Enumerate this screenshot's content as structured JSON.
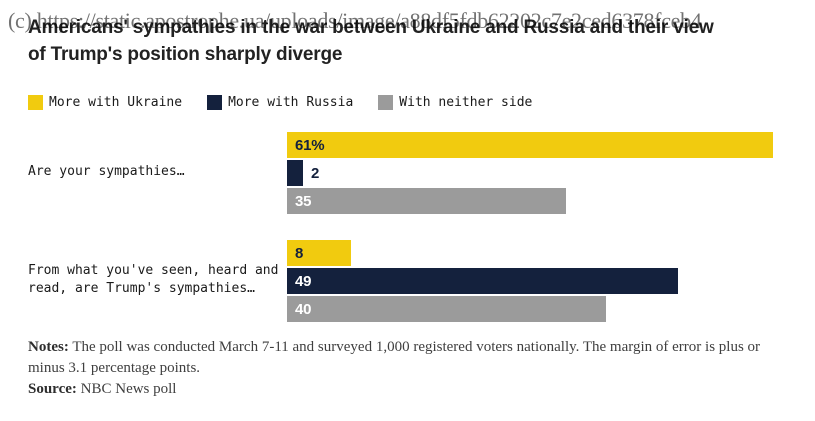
{
  "watermark": "(c) https://static.apostrophe.ua/uploads/image/a88df5fdb62202c7e2ced6378fceb4",
  "title": {
    "line1": "Americans' sympathies in the war between Ukraine and Russia and their view",
    "line2": "of Trump's position sharply diverge"
  },
  "legend": [
    {
      "label": "More with Ukraine",
      "color": "#F1CB0F"
    },
    {
      "label": "More with Russia",
      "color": "#14213D"
    },
    {
      "label": "With neither side",
      "color": "#9B9B9B"
    }
  ],
  "chart_data": {
    "type": "bar",
    "orientation": "horizontal",
    "title": "Americans' sympathies in the war between Ukraine and Russia and their view of Trump's position sharply diverge",
    "unit": "percent",
    "xlim": [
      0,
      63
    ],
    "grid": false,
    "legend_position": "top",
    "categories": [
      "Are your sympathies…",
      "From what you've seen, heard and read, are Trump's sympathies…"
    ],
    "series": [
      {
        "name": "More with Ukraine",
        "color": "#F1CB0F",
        "label_color": "#14213D",
        "values": [
          61,
          8
        ],
        "value_labels": [
          "61%",
          "8"
        ]
      },
      {
        "name": "More with Russia",
        "color": "#14213D",
        "label_color": "#FFFFFF",
        "values": [
          2,
          49
        ],
        "value_labels": [
          "2",
          "49"
        ]
      },
      {
        "name": "With neither side",
        "color": "#9B9B9B",
        "label_color": "#FFFFFF",
        "values": [
          35,
          40
        ],
        "value_labels": [
          "35",
          "40"
        ]
      }
    ]
  },
  "notes": {
    "label": "Notes:",
    "text": "The poll was conducted March 7-11 and surveyed 1,000 registered voters nationally. The margin of error is plus or minus 3.1 percentage points."
  },
  "source": {
    "label": "Source:",
    "text": "NBC News poll"
  }
}
